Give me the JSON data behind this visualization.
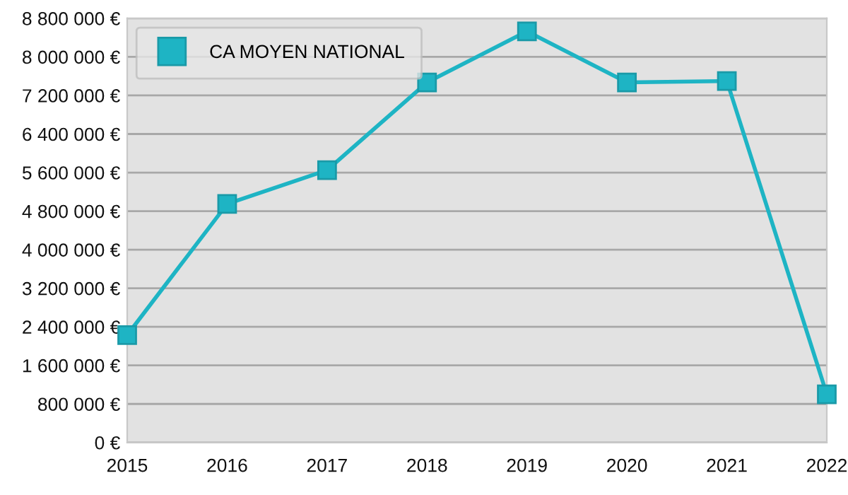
{
  "chart_data": {
    "type": "line",
    "x": [
      2015,
      2016,
      2017,
      2018,
      2019,
      2020,
      2021,
      2022
    ],
    "series": [
      {
        "name": "CA MOYEN NATIONAL",
        "color": "#1eb4c4",
        "values": [
          2230000,
          4950000,
          5650000,
          7470000,
          8530000,
          7470000,
          7500000,
          1000000
        ]
      }
    ],
    "xlim": [
      2015,
      2022
    ],
    "xticks": [
      2015,
      2016,
      2017,
      2018,
      2019,
      2020,
      2021,
      2022
    ],
    "ylim": [
      0,
      8800000
    ],
    "yticks": [
      {
        "value": 0,
        "label": "0 €"
      },
      {
        "value": 800000,
        "label": "800 000 €"
      },
      {
        "value": 1600000,
        "label": "1 600 000 €"
      },
      {
        "value": 2400000,
        "label": "2 400 000 €"
      },
      {
        "value": 3200000,
        "label": "3 200 000 €"
      },
      {
        "value": 4000000,
        "label": "4 000 000 €"
      },
      {
        "value": 4800000,
        "label": "4 800 000 €"
      },
      {
        "value": 5600000,
        "label": "5 600 000 €"
      },
      {
        "value": 6400000,
        "label": "6 400 000 €"
      },
      {
        "value": 7200000,
        "label": "7 200 000 €"
      },
      {
        "value": 8000000,
        "label": "8 000 000 €"
      },
      {
        "value": 8800000,
        "label": "8 800 000 €"
      }
    ],
    "grid": "y",
    "legend": "top left",
    "marker": "square",
    "line_style": "solid"
  }
}
